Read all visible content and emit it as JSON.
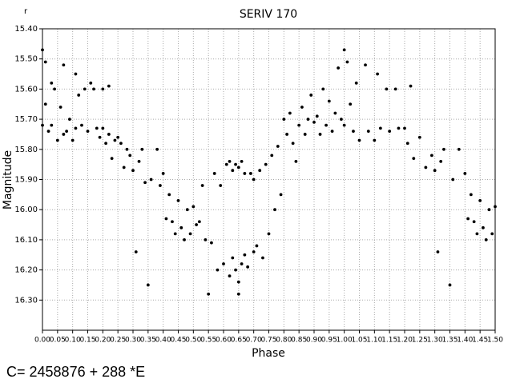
{
  "chart_data": {
    "type": "scatter",
    "title": "SERIV 170",
    "corner_label": "r",
    "xlabel": "Phase",
    "ylabel": "Magnitude",
    "footnote": "C= 2458876 + 288 *E",
    "xlim": [
      0,
      1.5
    ],
    "ylim": [
      15.4,
      16.4
    ],
    "y_reversed": true,
    "grid": true,
    "xticks": [
      {
        "value": 0,
        "label": "0.00"
      },
      {
        "value": 0.05,
        "label": "0.05"
      },
      {
        "value": 0.1,
        "label": "0.10"
      },
      {
        "value": 0.15,
        "label": "0.15"
      },
      {
        "value": 0.2,
        "label": "0.20"
      },
      {
        "value": 0.25,
        "label": "0.25"
      },
      {
        "value": 0.3,
        "label": "0.30"
      },
      {
        "value": 0.35,
        "label": "0.35"
      },
      {
        "value": 0.4,
        "label": "0.40"
      },
      {
        "value": 0.45,
        "label": "0.45"
      },
      {
        "value": 0.5,
        "label": "0.50"
      },
      {
        "value": 0.55,
        "label": "0.55"
      },
      {
        "value": 0.6,
        "label": "0.60"
      },
      {
        "value": 0.65,
        "label": "0.65"
      },
      {
        "value": 0.7,
        "label": "0.70"
      },
      {
        "value": 0.75,
        "label": "0.75"
      },
      {
        "value": 0.8,
        "label": "0.80"
      },
      {
        "value": 0.85,
        "label": "0.85"
      },
      {
        "value": 0.9,
        "label": "0.90"
      },
      {
        "value": 0.95,
        "label": "0.95"
      },
      {
        "value": 1,
        "label": "1.00"
      },
      {
        "value": 1.05,
        "label": "1.05"
      },
      {
        "value": 1.1,
        "label": "1.10"
      },
      {
        "value": 1.15,
        "label": "1.15"
      },
      {
        "value": 1.2,
        "label": "1.20"
      },
      {
        "value": 1.25,
        "label": "1.25"
      },
      {
        "value": 1.3,
        "label": "1.30"
      },
      {
        "value": 1.35,
        "label": "1.35"
      },
      {
        "value": 1.4,
        "label": "1.40"
      },
      {
        "value": 1.45,
        "label": "1.45"
      },
      {
        "value": 1.5,
        "label": "1.50"
      }
    ],
    "yticks": [
      {
        "value": 15.4,
        "label": "15.40"
      },
      {
        "value": 15.5,
        "label": "15.50"
      },
      {
        "value": 15.6,
        "label": "15.60"
      },
      {
        "value": 15.7,
        "label": "15.70"
      },
      {
        "value": 15.8,
        "label": "15.80"
      },
      {
        "value": 15.9,
        "label": "15.90"
      },
      {
        "value": 16.0,
        "label": "16.00"
      },
      {
        "value": 16.1,
        "label": "16.10"
      },
      {
        "value": 16.2,
        "label": "16.20"
      },
      {
        "value": 16.3,
        "label": "16.30"
      }
    ],
    "x": [
      0.0,
      0.0,
      0.01,
      0.01,
      0.02,
      0.03,
      0.03,
      0.04,
      0.05,
      0.06,
      0.07,
      0.07,
      0.08,
      0.09,
      0.1,
      0.11,
      0.11,
      0.12,
      0.13,
      0.14,
      0.15,
      0.16,
      0.17,
      0.18,
      0.19,
      0.2,
      0.2,
      0.21,
      0.22,
      0.22,
      0.23,
      0.24,
      0.25,
      0.26,
      0.27,
      0.28,
      0.29,
      0.3,
      0.31,
      0.32,
      0.33,
      0.34,
      0.35,
      0.36,
      0.38,
      0.39,
      0.4,
      0.41,
      0.42,
      0.43,
      0.44,
      0.45,
      0.46,
      0.47,
      0.48,
      0.49,
      0.5,
      0.51,
      0.52,
      0.53,
      0.54,
      0.55,
      0.56,
      0.57,
      0.58,
      0.59,
      0.6,
      0.61,
      0.62,
      0.62,
      0.63,
      0.63,
      0.64,
      0.64,
      0.65,
      0.65,
      0.65,
      0.66,
      0.66,
      0.67,
      0.67,
      0.68,
      0.69,
      0.7,
      0.7,
      0.71,
      0.72,
      0.73,
      0.74,
      0.75,
      0.76,
      0.77,
      0.78,
      0.79,
      0.8,
      0.81,
      0.82,
      0.83,
      0.84,
      0.85,
      0.86,
      0.87,
      0.88,
      0.89,
      0.9,
      0.91,
      0.92,
      0.93,
      0.94,
      0.95,
      0.96,
      0.97,
      0.98,
      0.99,
      1.0,
      1.0,
      1.01,
      1.02,
      1.03,
      1.04,
      1.05,
      1.07,
      1.08,
      1.1,
      1.11,
      1.12,
      1.14,
      1.15,
      1.17,
      1.18,
      1.2,
      1.21,
      1.22,
      1.23,
      1.25,
      1.27,
      1.29,
      1.3,
      1.31,
      1.32,
      1.33,
      1.35,
      1.36,
      1.38,
      1.4,
      1.41,
      1.42,
      1.43,
      1.44,
      1.45,
      1.46,
      1.47,
      1.48,
      1.49,
      1.5
    ],
    "series": [
      {
        "color": "#000000",
        "values": [
          15.47,
          15.72,
          15.51,
          15.65,
          15.74,
          15.58,
          15.72,
          15.6,
          15.77,
          15.66,
          15.52,
          15.75,
          15.74,
          15.7,
          15.77,
          15.55,
          15.73,
          15.62,
          15.72,
          15.6,
          15.74,
          15.58,
          15.6,
          15.73,
          15.76,
          15.73,
          15.6,
          15.78,
          15.75,
          15.59,
          15.83,
          15.77,
          15.76,
          15.78,
          15.86,
          15.8,
          15.82,
          15.87,
          16.14,
          15.84,
          15.8,
          15.91,
          16.25,
          15.9,
          15.8,
          15.92,
          15.88,
          16.03,
          15.95,
          16.04,
          16.08,
          15.97,
          16.06,
          16.1,
          16.0,
          16.08,
          15.99,
          16.05,
          16.04,
          15.92,
          16.1,
          16.28,
          16.11,
          15.88,
          16.2,
          15.92,
          16.18,
          15.85,
          16.22,
          15.84,
          16.16,
          15.87,
          16.2,
          15.85,
          16.24,
          16.28,
          15.86,
          16.18,
          15.84,
          16.15,
          15.88,
          16.19,
          15.88,
          16.14,
          15.9,
          16.12,
          15.87,
          16.16,
          15.85,
          16.08,
          15.82,
          16.0,
          15.79,
          15.95,
          15.7,
          15.75,
          15.68,
          15.78,
          15.84,
          15.72,
          15.66,
          15.75,
          15.7,
          15.62,
          15.71,
          15.69,
          15.75,
          15.6,
          15.72,
          15.64,
          15.74,
          15.68,
          15.53,
          15.7,
          15.47,
          15.72,
          15.51,
          15.65,
          15.74,
          15.58,
          15.77,
          15.52,
          15.74,
          15.77,
          15.55,
          15.73,
          15.6,
          15.74,
          15.6,
          15.73,
          15.73,
          15.78,
          15.59,
          15.83,
          15.76,
          15.86,
          15.82,
          15.87,
          16.14,
          15.84,
          15.8,
          16.25,
          15.9,
          15.8,
          15.88,
          16.03,
          15.95,
          16.04,
          16.08,
          15.97,
          16.06,
          16.1,
          16.0,
          16.08,
          15.99
        ]
      }
    ]
  }
}
